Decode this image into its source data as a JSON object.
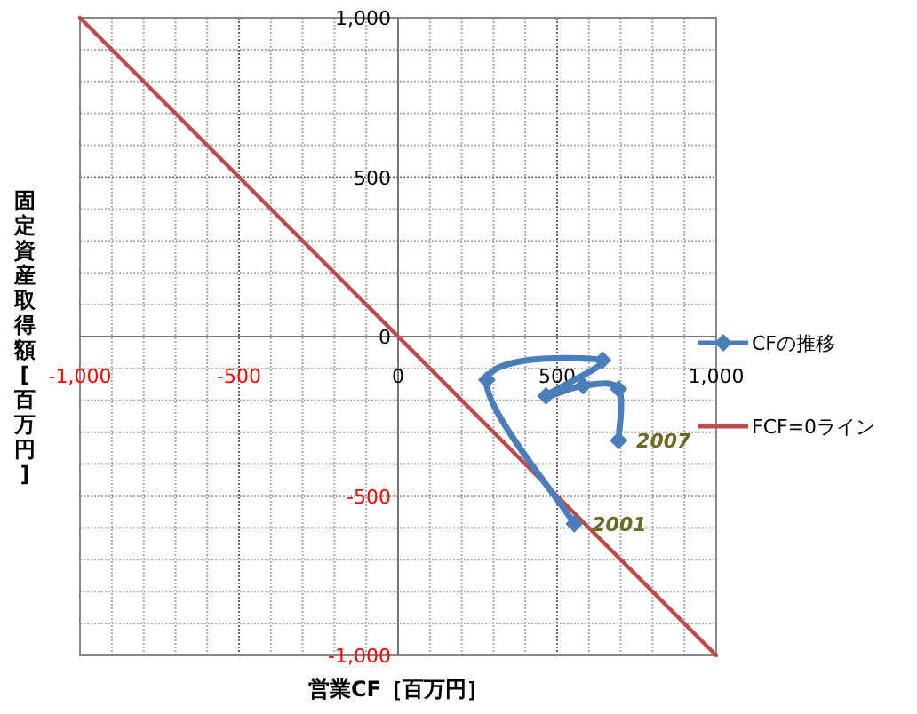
{
  "chart_data": {
    "type": "line",
    "xlabel": "営業CF［百万円］",
    "ylabel": "固定資産取得額[百万円]",
    "xlim": [
      -1000,
      1000
    ],
    "ylim": [
      -1000,
      1000
    ],
    "xticks": [
      {
        "value": -1000,
        "label": "-1,000"
      },
      -500,
      0,
      500,
      {
        "value": 1000,
        "label": "1,000"
      }
    ],
    "yticks": [
      {
        "value": -1000,
        "label": "-1,000"
      },
      -500,
      0,
      500,
      {
        "value": 1000,
        "label": "1,000"
      }
    ],
    "grid": true,
    "legend": "right",
    "line_style": "solid",
    "series": [
      {
        "name": "CFの推移",
        "color": "#4a7ebb",
        "marker": "diamond",
        "x": [
          554,
          279,
          643,
          465,
          582,
          693,
          693
        ],
        "values": [
          -587,
          -136,
          -74,
          -186,
          -154,
          -164,
          -326
        ]
      },
      {
        "name": "FCF=0ライン",
        "color": "#be4b48",
        "marker": "none",
        "x": [
          -1000,
          1000
        ],
        "values": [
          1000,
          -1000
        ]
      }
    ],
    "annotations": [
      {
        "text": "2001",
        "x": 554,
        "y": -587
      },
      {
        "text": "2007",
        "x": 693,
        "y": -326
      }
    ]
  }
}
